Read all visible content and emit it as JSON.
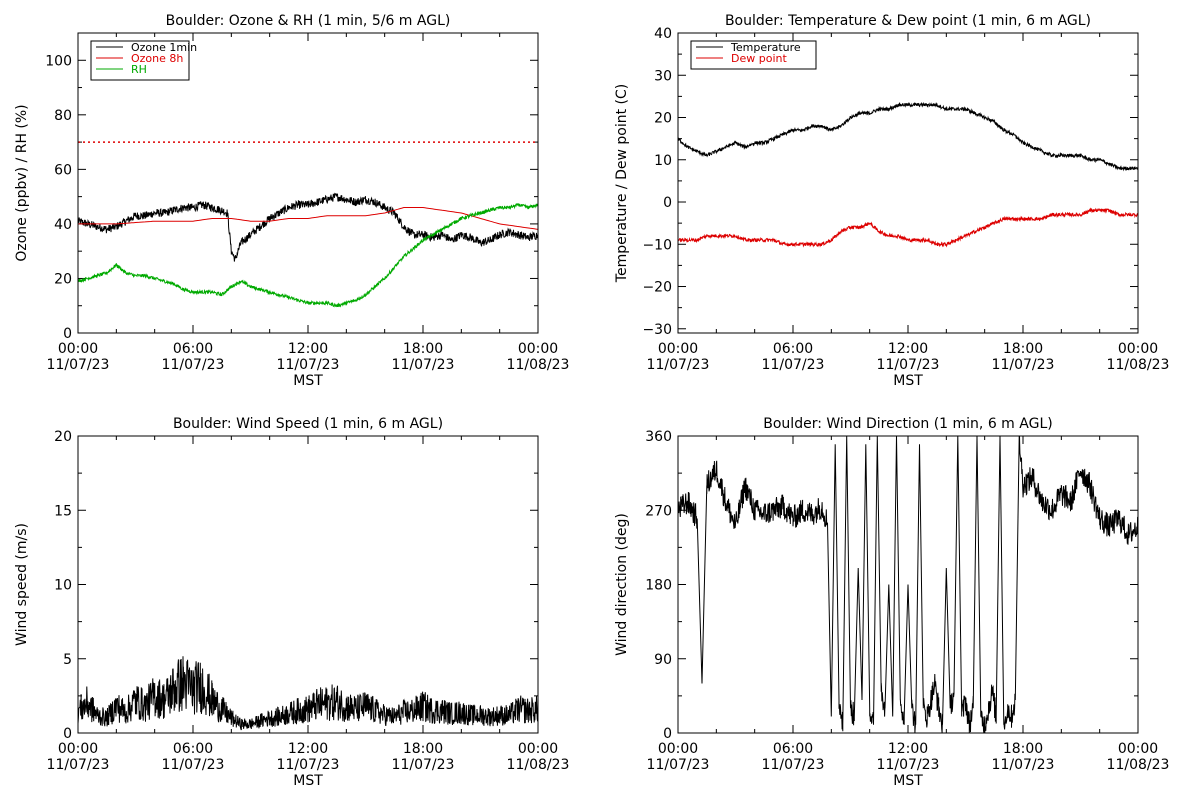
{
  "chart_data": [
    {
      "type": "line",
      "title": "Boulder: Ozone & RH (1 min, 5/6 m AGL)",
      "ylabel": "Ozone (ppbv) / RH (%)",
      "xlabel": "MST",
      "xlim_hours": [
        0,
        24
      ],
      "ylim": [
        0,
        110
      ],
      "yticks": [
        "0",
        "20",
        "40",
        "60",
        "80",
        "100"
      ],
      "xticks": [
        {
          "time": "00:00",
          "date": "11/07/23"
        },
        {
          "time": "06:00",
          "date": "11/07/23"
        },
        {
          "time": "12:00",
          "date": "11/07/23"
        },
        {
          "time": "18:00",
          "date": "11/07/23"
        },
        {
          "time": "00:00",
          "date": "11/08/23"
        }
      ],
      "legend_position": "top-left",
      "reference_line": {
        "y": 70,
        "color": "#dd0000",
        "style": "dotted"
      },
      "series": [
        {
          "name": "Ozone 1min",
          "color": "#000000",
          "x": [
            0,
            0.5,
            1,
            1.5,
            2,
            2.5,
            3,
            3.5,
            4,
            4.5,
            5,
            5.5,
            6,
            6.5,
            7,
            7.5,
            7.8,
            8,
            8.2,
            8.5,
            9,
            9.5,
            10,
            10.5,
            11,
            11.5,
            12,
            12.5,
            13,
            13.5,
            14,
            14.5,
            15,
            15.5,
            16,
            16.5,
            17,
            17.5,
            18,
            18.5,
            19,
            19.5,
            20,
            20.5,
            21,
            21.5,
            22,
            22.5,
            23,
            23.5,
            24
          ],
          "y": [
            41,
            40,
            39,
            38,
            39,
            41,
            43,
            43,
            44,
            44,
            45,
            46,
            46,
            47,
            46,
            45,
            44,
            30,
            27,
            33,
            36,
            39,
            42,
            44,
            46,
            47,
            47,
            48,
            49,
            50,
            49,
            48,
            49,
            48,
            46,
            44,
            39,
            36,
            36,
            35,
            36,
            34,
            36,
            35,
            33,
            34,
            36,
            37,
            36,
            35,
            36
          ]
        },
        {
          "name": "Ozone 8h",
          "color": "#dd0000",
          "x": [
            0,
            2,
            4,
            6,
            7,
            8,
            9,
            10,
            11,
            12,
            13,
            14,
            15,
            16,
            17,
            18,
            19,
            20,
            21,
            22,
            23,
            24
          ],
          "y": [
            40,
            40,
            41,
            41,
            42,
            42,
            41,
            41,
            42,
            42,
            43,
            43,
            43,
            44,
            46,
            46,
            45,
            44,
            42,
            40,
            39,
            38
          ]
        },
        {
          "name": "RH",
          "color": "#00aa00",
          "x": [
            0,
            0.5,
            1,
            1.5,
            2,
            2.5,
            3,
            3.5,
            4,
            4.5,
            5,
            5.5,
            6,
            6.5,
            7,
            7.5,
            8,
            8.5,
            9,
            9.5,
            10,
            10.5,
            11,
            11.5,
            12,
            12.5,
            13,
            13.5,
            14,
            14.5,
            15,
            15.5,
            16,
            16.5,
            17,
            17.5,
            18,
            18.5,
            19,
            19.5,
            20,
            20.5,
            21,
            21.5,
            22,
            22.5,
            23,
            23.5,
            24
          ],
          "y": [
            19,
            20,
            21,
            22,
            25,
            22,
            21,
            21,
            20,
            19,
            18,
            16,
            15,
            15,
            15,
            14,
            17,
            19,
            17,
            16,
            15,
            14,
            13,
            12,
            11,
            11,
            11,
            10,
            11,
            12,
            14,
            17,
            20,
            24,
            28,
            31,
            34,
            36,
            38,
            40,
            42,
            43,
            44,
            45,
            46,
            46,
            47,
            46,
            47
          ]
        }
      ]
    },
    {
      "type": "line",
      "title": "Boulder: Temperature & Dew point (1 min, 6 m AGL)",
      "ylabel": "Temperature / Dew point (C)",
      "xlabel": "MST",
      "xlim_hours": [
        0,
        24
      ],
      "ylim": [
        -31,
        40
      ],
      "yticks": [
        "−30",
        "−20",
        "−10",
        "0",
        "10",
        "20",
        "30",
        "40"
      ],
      "ytick_values": [
        -30,
        -20,
        -10,
        0,
        10,
        20,
        30,
        40
      ],
      "xticks": [
        {
          "time": "00:00",
          "date": "11/07/23"
        },
        {
          "time": "06:00",
          "date": "11/07/23"
        },
        {
          "time": "12:00",
          "date": "11/07/23"
        },
        {
          "time": "18:00",
          "date": "11/07/23"
        },
        {
          "time": "00:00",
          "date": "11/08/23"
        }
      ],
      "legend_position": "top-left",
      "series": [
        {
          "name": "Temperature",
          "color": "#000000",
          "x": [
            0,
            0.5,
            1,
            1.5,
            2,
            2.5,
            3,
            3.5,
            4,
            4.5,
            5,
            5.5,
            6,
            6.5,
            7,
            7.5,
            8,
            8.5,
            9,
            9.5,
            10,
            10.5,
            11,
            11.5,
            12,
            12.5,
            13,
            13.5,
            14,
            14.5,
            15,
            15.5,
            16,
            16.5,
            17,
            17.5,
            18,
            18.5,
            19,
            19.5,
            20,
            20.5,
            21,
            21.5,
            22,
            22.5,
            23,
            23.5,
            24
          ],
          "y": [
            15,
            13,
            12,
            11,
            12,
            13,
            14,
            13,
            14,
            14,
            15,
            16,
            17,
            17,
            18,
            18,
            17,
            18,
            20,
            21,
            21,
            22,
            22,
            23,
            23,
            23,
            23,
            23,
            22,
            22,
            22,
            21,
            20,
            19,
            17,
            16,
            14,
            13,
            12,
            11,
            11,
            11,
            11,
            10,
            10,
            9,
            8,
            8,
            8
          ]
        },
        {
          "name": "Dew point",
          "color": "#dd0000",
          "x": [
            0,
            0.5,
            1,
            1.5,
            2,
            2.5,
            3,
            3.5,
            4,
            4.5,
            5,
            5.5,
            6,
            6.5,
            7,
            7.5,
            8,
            8.5,
            9,
            9.5,
            10,
            10.5,
            11,
            11.5,
            12,
            12.5,
            13,
            13.5,
            14,
            14.5,
            15,
            15.5,
            16,
            16.5,
            17,
            17.5,
            18,
            18.5,
            19,
            19.5,
            20,
            20.5,
            21,
            21.5,
            22,
            22.5,
            23,
            23.5,
            24
          ],
          "y": [
            -9,
            -9,
            -9,
            -8,
            -8,
            -8,
            -8,
            -9,
            -9,
            -9,
            -9,
            -10,
            -10,
            -10,
            -10,
            -10,
            -9,
            -7,
            -6,
            -6,
            -5,
            -7,
            -8,
            -8,
            -9,
            -9,
            -9,
            -10,
            -10,
            -9,
            -8,
            -7,
            -6,
            -5,
            -4,
            -4,
            -4,
            -4,
            -4,
            -3,
            -3,
            -3,
            -3,
            -2,
            -2,
            -2,
            -3,
            -3,
            -3
          ]
        }
      ]
    },
    {
      "type": "line",
      "title": "Boulder: Wind Speed (1 min, 6 m AGL)",
      "ylabel": "Wind speed (m/s)",
      "xlabel": "MST",
      "xlim_hours": [
        0,
        24
      ],
      "ylim": [
        0,
        20
      ],
      "yticks": [
        "0",
        "5",
        "10",
        "15",
        "20"
      ],
      "ytick_values": [
        0,
        5,
        10,
        15,
        20
      ],
      "xticks": [
        {
          "time": "00:00",
          "date": "11/07/23"
        },
        {
          "time": "06:00",
          "date": "11/07/23"
        },
        {
          "time": "12:00",
          "date": "11/07/23"
        },
        {
          "time": "18:00",
          "date": "11/07/23"
        },
        {
          "time": "00:00",
          "date": "11/08/23"
        }
      ],
      "series": [
        {
          "color": "#000000",
          "x": [
            0,
            0.5,
            1,
            1.5,
            2,
            2.5,
            3,
            3.5,
            4,
            4.5,
            5,
            5.5,
            6,
            6.5,
            7,
            7.5,
            8,
            8.5,
            9,
            9.5,
            10,
            10.5,
            11,
            11.5,
            12,
            12.5,
            13,
            13.5,
            14,
            14.5,
            15,
            15.5,
            16,
            16.5,
            17,
            17.5,
            18,
            18.5,
            19,
            19.5,
            20,
            20.5,
            21,
            21.5,
            22,
            22.5,
            23,
            23.5,
            24
          ],
          "y": [
            1.5,
            2.0,
            1.2,
            1.0,
            1.8,
            1.4,
            2.2,
            1.8,
            2.5,
            2.2,
            3.0,
            3.4,
            3.0,
            3.2,
            2.2,
            1.6,
            1.0,
            0.6,
            0.6,
            0.8,
            1.0,
            1.1,
            1.3,
            1.5,
            1.6,
            1.9,
            2.0,
            2.1,
            1.8,
            1.6,
            1.8,
            1.5,
            1.2,
            1.1,
            1.4,
            1.5,
            1.8,
            1.5,
            1.5,
            1.3,
            1.4,
            1.2,
            1.2,
            1.1,
            1.2,
            1.2,
            1.6,
            1.5,
            1.6
          ]
        }
      ]
    },
    {
      "type": "line",
      "title": "Boulder: Wind Direction (1 min, 6 m AGL)",
      "ylabel": "Wind direction (deg)",
      "xlabel": "MST",
      "xlim_hours": [
        0,
        24
      ],
      "ylim": [
        0,
        360
      ],
      "yticks": [
        "0",
        "90",
        "180",
        "270",
        "360"
      ],
      "ytick_values": [
        0,
        90,
        180,
        270,
        360
      ],
      "xticks": [
        {
          "time": "00:00",
          "date": "11/07/23"
        },
        {
          "time": "06:00",
          "date": "11/07/23"
        },
        {
          "time": "12:00",
          "date": "11/07/23"
        },
        {
          "time": "18:00",
          "date": "11/07/23"
        },
        {
          "time": "00:00",
          "date": "11/08/23"
        }
      ],
      "series": [
        {
          "color": "#000000",
          "x": [
            0,
            0.5,
            1,
            1.25,
            1.5,
            2,
            2.5,
            3,
            3.5,
            4,
            4.5,
            5,
            5.5,
            6,
            6.5,
            7,
            7.5,
            7.8,
            8.0,
            8.2,
            8.4,
            8.6,
            8.8,
            9.0,
            9.2,
            9.4,
            9.6,
            9.8,
            10.0,
            10.2,
            10.4,
            10.6,
            10.8,
            11.0,
            11.2,
            11.4,
            11.6,
            11.8,
            12.0,
            12.2,
            12.4,
            12.6,
            12.8,
            13.0,
            13.2,
            13.4,
            13.6,
            13.8,
            14.0,
            14.2,
            14.4,
            14.6,
            14.8,
            15.0,
            15.2,
            15.4,
            15.6,
            15.8,
            16.0,
            16.2,
            16.4,
            16.6,
            16.8,
            17.0,
            17.2,
            17.4,
            17.6,
            17.8,
            18.0,
            18.5,
            19,
            19.5,
            20,
            20.5,
            21,
            21.5,
            22,
            22.5,
            23,
            23.5,
            24
          ],
          "y": [
            270,
            280,
            260,
            60,
            300,
            320,
            280,
            250,
            300,
            270,
            265,
            270,
            275,
            260,
            270,
            265,
            275,
            255,
            20,
            350,
            40,
            10,
            360,
            30,
            20,
            200,
            40,
            350,
            30,
            10,
            360,
            50,
            30,
            180,
            20,
            360,
            40,
            20,
            180,
            30,
            10,
            350,
            30,
            20,
            40,
            60,
            30,
            10,
            200,
            30,
            50,
            360,
            20,
            40,
            10,
            30,
            360,
            20,
            10,
            30,
            50,
            20,
            360,
            10,
            30,
            20,
            40,
            360,
            300,
            310,
            280,
            270,
            290,
            280,
            320,
            300,
            260,
            250,
            260,
            240,
            250
          ]
        }
      ]
    }
  ]
}
